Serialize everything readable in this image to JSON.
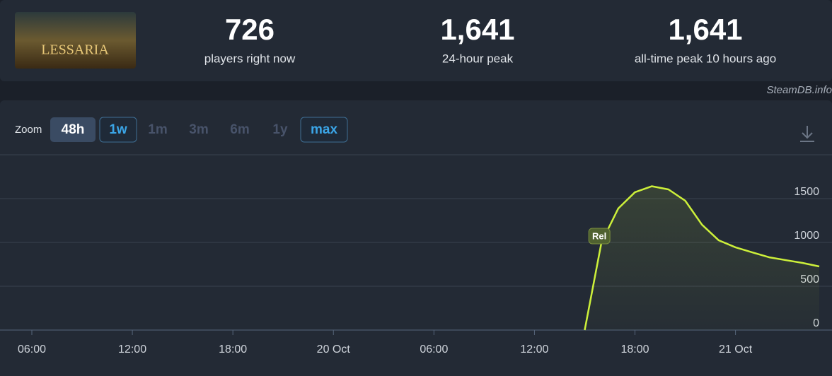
{
  "header": {
    "logo_text": "LESSARIA",
    "stats": [
      {
        "value": "726",
        "label": "players right now"
      },
      {
        "value": "1,641",
        "label": "24-hour peak"
      },
      {
        "value": "1,641",
        "label": "all-time peak 10 hours ago"
      }
    ]
  },
  "watermark": "SteamDB.info",
  "toolbar": {
    "label": "Zoom",
    "buttons": [
      {
        "label": "48h",
        "state": "active"
      },
      {
        "label": "1w",
        "state": "outlined"
      },
      {
        "label": "1m",
        "state": "disabled"
      },
      {
        "label": "3m",
        "state": "disabled"
      },
      {
        "label": "6m",
        "state": "disabled"
      },
      {
        "label": "1y",
        "state": "disabled"
      },
      {
        "label": "max",
        "state": "outlined"
      }
    ]
  },
  "chart_data": {
    "type": "line",
    "x": [
      39,
      40,
      41,
      42,
      43,
      44,
      45,
      46,
      47,
      48,
      49,
      50,
      51,
      52,
      53
    ],
    "series": [
      {
        "name": "Players",
        "color": "#cdf03a",
        "values": [
          0,
          1000,
          1387,
          1573,
          1641,
          1605,
          1476,
          1202,
          1024,
          944,
          887,
          831,
          798,
          766,
          726
        ]
      }
    ],
    "xlim": [
      4.1,
      53
    ],
    "xticks": [
      {
        "value": 6,
        "label": "06:00"
      },
      {
        "value": 12,
        "label": "12:00"
      },
      {
        "value": 18,
        "label": "18:00"
      },
      {
        "value": 24,
        "label": "20 Oct"
      },
      {
        "value": 30,
        "label": "06:00"
      },
      {
        "value": 36,
        "label": "12:00"
      },
      {
        "value": 42,
        "label": "18:00"
      },
      {
        "value": 48,
        "label": "21 Oct"
      }
    ],
    "ylim": [
      0,
      2000
    ],
    "yticks": [
      0,
      500,
      1000,
      1500
    ],
    "grid": true,
    "annotations": [
      {
        "label": "Rel",
        "x": 40
      }
    ]
  }
}
